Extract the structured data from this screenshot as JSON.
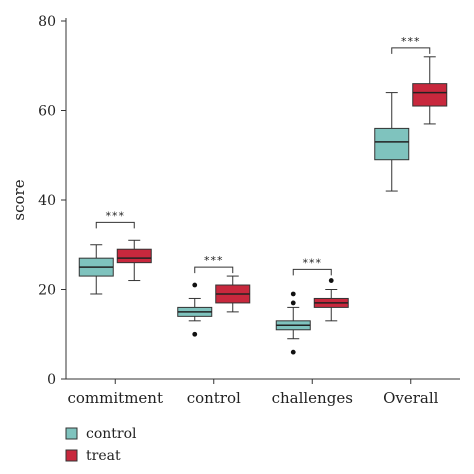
{
  "chart_data": {
    "type": "box",
    "ylabel": "score",
    "ylim": [
      0,
      80
    ],
    "yticks": [
      0,
      20,
      40,
      60,
      80
    ],
    "categories": [
      "commitment",
      "control",
      "challenges",
      "Overall"
    ],
    "series": [
      {
        "name": "control",
        "color": "#7fc3be",
        "boxes": [
          {
            "min": 19,
            "q1": 23,
            "median": 25,
            "q3": 27,
            "max": 30,
            "outliers": []
          },
          {
            "min": 13,
            "q1": 14,
            "median": 15,
            "q3": 16,
            "max": 18,
            "outliers": [
              10,
              21
            ]
          },
          {
            "min": 9,
            "q1": 11,
            "median": 12,
            "q3": 13,
            "max": 16,
            "outliers": [
              6,
              17,
              19
            ]
          },
          {
            "min": 42,
            "q1": 49,
            "median": 53,
            "q3": 56,
            "max": 64,
            "outliers": []
          }
        ]
      },
      {
        "name": "treat",
        "color": "#c8283d",
        "boxes": [
          {
            "min": 22,
            "q1": 26,
            "median": 27,
            "q3": 29,
            "max": 31,
            "outliers": []
          },
          {
            "min": 15,
            "q1": 17,
            "median": 19,
            "q3": 21,
            "max": 23,
            "outliers": []
          },
          {
            "min": 13,
            "q1": 16,
            "median": 17,
            "q3": 18,
            "max": 20,
            "outliers": [
              22
            ]
          },
          {
            "min": 57,
            "q1": 61,
            "median": 64,
            "q3": 66,
            "max": 72,
            "outliers": []
          }
        ]
      }
    ],
    "significance": [
      {
        "category": 0,
        "label": "***",
        "y": 35
      },
      {
        "category": 1,
        "label": "***",
        "y": 25
      },
      {
        "category": 2,
        "label": "***",
        "y": 24.5
      },
      {
        "category": 3,
        "label": "***",
        "y": 74
      }
    ],
    "legend": {
      "placement": "bottom-left",
      "entries": [
        "control",
        "treat"
      ]
    }
  }
}
